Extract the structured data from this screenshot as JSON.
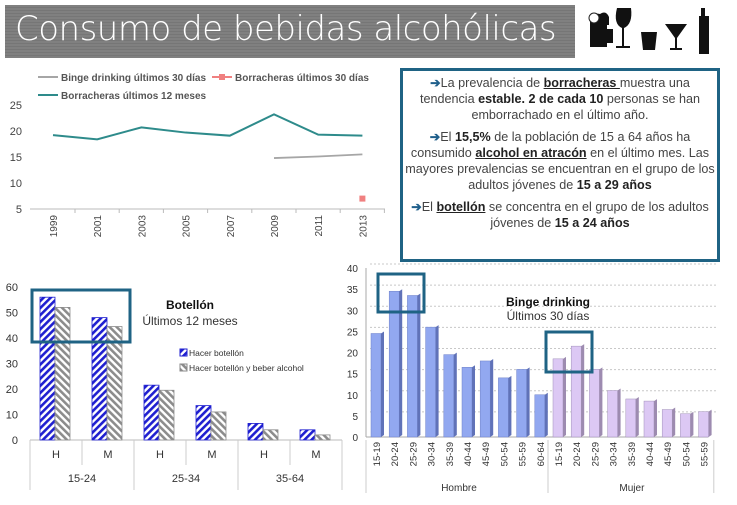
{
  "title": "Consumo de bebidas alcohólicas",
  "icons": [
    "beer-mug-icon",
    "wine-glass-icon",
    "shot-glass-icon",
    "cocktail-glass-icon",
    "bottle-icon"
  ],
  "textbox": {
    "p1": {
      "a": "La prevalencia de ",
      "b": "borracheras ",
      "c": "muestra una tendencia ",
      "d": "estable. 2 de cada 10",
      "e": " personas se han emborrachado en el último año."
    },
    "p2": {
      "a": "El ",
      "b": "15,5%",
      "c": " de la población de 15 a 64 años ha consumido ",
      "d": "alcohol en atracón",
      "e": " en el último mes. Las mayores prevalencias se encuentran en el grupo de los adultos jóvenes de ",
      "f": "15 a 29 años"
    },
    "p3": {
      "a": "El ",
      "b": "botellón",
      "c": " se concentra en el grupo de los adultos jóvenes de ",
      "d": "15 a 24 años"
    }
  },
  "colors": {
    "teal": "#2e8b8b",
    "gray": "#a6a6a6",
    "salmon": "#f08080",
    "blue": "#1f1fd0",
    "highlight": "#1f6384",
    "binge_h": "#92a8f0",
    "binge_m": "#dcc8f4"
  },
  "chart_data": [
    {
      "type": "line",
      "x": [
        "1999",
        "2001",
        "2003",
        "2005",
        "2007",
        "2009",
        "2011",
        "2013"
      ],
      "ylim": [
        5,
        25
      ],
      "yticks": [
        "5",
        "10",
        "15",
        "20",
        "25"
      ],
      "legend": "top",
      "series": [
        {
          "name": "Binge drinking últimos 30 días",
          "values": [
            null,
            null,
            null,
            null,
            null,
            14.8,
            15.1,
            15.5
          ]
        },
        {
          "name": "Borracheras últimos 30 días",
          "values": [
            null,
            null,
            null,
            null,
            null,
            null,
            null,
            7
          ]
        },
        {
          "name": "Borracheras últimos 12 meses",
          "values": [
            19.2,
            18.4,
            20.7,
            19.7,
            19.1,
            23.2,
            19.3,
            19.1
          ]
        }
      ]
    },
    {
      "type": "bar",
      "title": "Botellón",
      "subtitle": "Últimos 12 meses",
      "ylim": [
        0,
        60
      ],
      "yticks": [
        "0",
        "10",
        "20",
        "30",
        "40",
        "50",
        "60"
      ],
      "groups": [
        "15-24",
        "25-34",
        "35-64"
      ],
      "categories": [
        "H",
        "M",
        "H",
        "M",
        "H",
        "M"
      ],
      "series": [
        {
          "name": "Hacer botellón",
          "values": [
            56,
            48,
            21.5,
            13.5,
            6.5,
            4
          ]
        },
        {
          "name": "Hacer botellón y beber alcohol",
          "values": [
            52,
            44.5,
            19.5,
            11,
            4,
            2
          ]
        }
      ]
    },
    {
      "type": "bar",
      "title": "Binge drinking",
      "subtitle": "Últimos 30 días",
      "ylim": [
        0,
        40
      ],
      "yticks": [
        "0",
        "5",
        "10",
        "15",
        "20",
        "25",
        "30",
        "35",
        "40"
      ],
      "groups": [
        {
          "name": "Hombre",
          "categories": [
            "15-19",
            "20-24",
            "25-29",
            "30-34",
            "35-39",
            "40-44",
            "45-49",
            "50-54",
            "55-59",
            "60-64"
          ],
          "values": [
            24.5,
            34.5,
            33.5,
            26,
            19.5,
            16.5,
            18,
            14,
            16,
            10
          ]
        },
        {
          "name": "Mujer",
          "categories": [
            "15-19",
            "20-24",
            "25-29",
            "30-34",
            "35-39",
            "40-44",
            "45-49",
            "50-54",
            "55-59"
          ],
          "values": [
            18.5,
            21.5,
            16,
            11,
            9,
            8.5,
            6.5,
            5.5,
            6
          ]
        }
      ]
    }
  ]
}
